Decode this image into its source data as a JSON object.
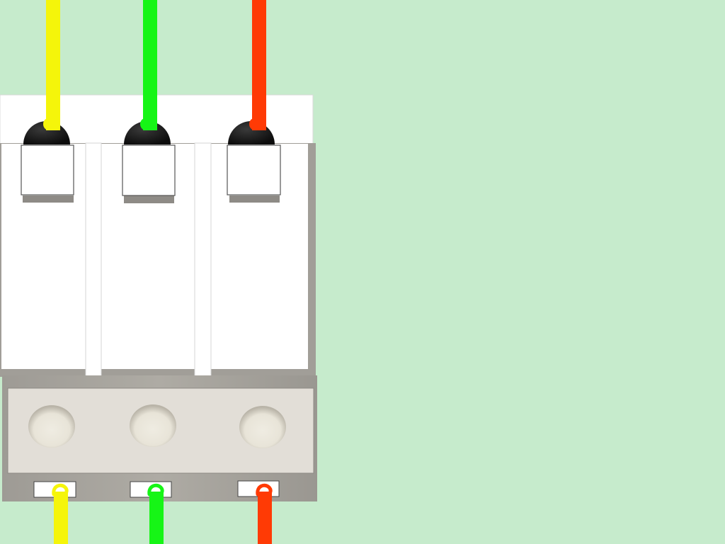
{
  "scene": {
    "background": "#c6ebcc",
    "breaker": {
      "poles": 3,
      "body_color": "#ffffff",
      "base_color": "#a3a09a",
      "terminal_strip_color": "#e2ded7"
    },
    "wires": [
      {
        "id": "line-1",
        "color": "#f5f50a",
        "icon": "screw-terminal-icon"
      },
      {
        "id": "line-2",
        "color": "#16f516",
        "icon": "screw-terminal-icon"
      },
      {
        "id": "line-3",
        "color": "#ff3a05",
        "icon": "screw-terminal-icon"
      }
    ]
  }
}
